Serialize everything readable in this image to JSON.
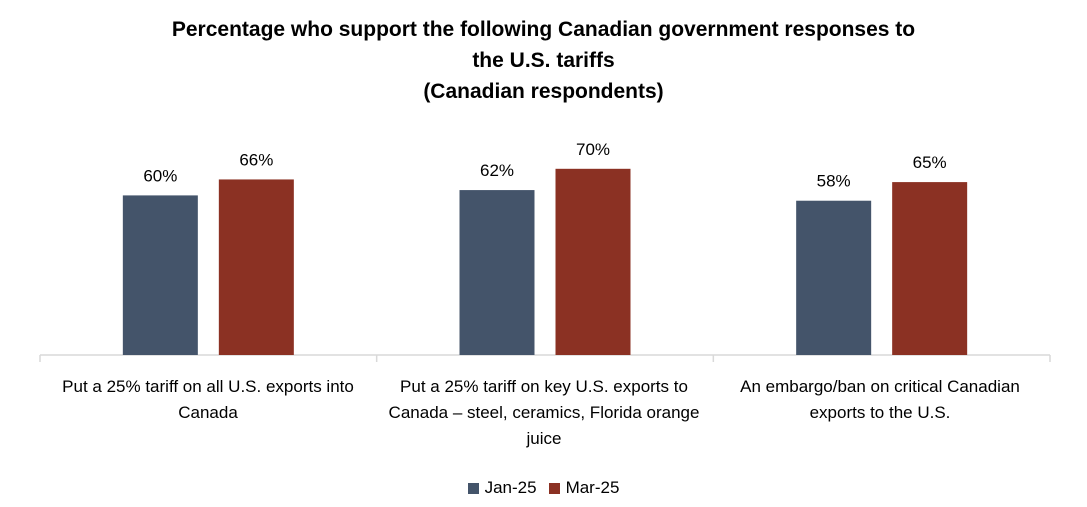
{
  "chart_data": {
    "type": "bar",
    "title_lines": [
      "Percentage who support the following Canadian government responses to",
      "the U.S. tariffs",
      "(Canadian respondents)"
    ],
    "categories": [
      "Put a 25% tariff on all U.S. exports into Canada",
      "Put a 25% tariff on key U.S. exports to Canada – steel, ceramics, Florida orange juice",
      "An embargo/ban on critical Canadian exports to the U.S."
    ],
    "series": [
      {
        "name": "Jan-25",
        "values": [
          60,
          62,
          58
        ],
        "labels": [
          "60%",
          "62%",
          "58%"
        ],
        "color": "#44546A"
      },
      {
        "name": "Mar-25",
        "values": [
          66,
          70,
          65
        ],
        "labels": [
          "66%",
          "70%",
          "65%"
        ],
        "color": "#8B3123"
      }
    ],
    "unit": "%",
    "ylim": [
      0,
      70
    ],
    "grid": false,
    "legend_position": "bottom-center",
    "axis_color": "#D9D9D9"
  }
}
